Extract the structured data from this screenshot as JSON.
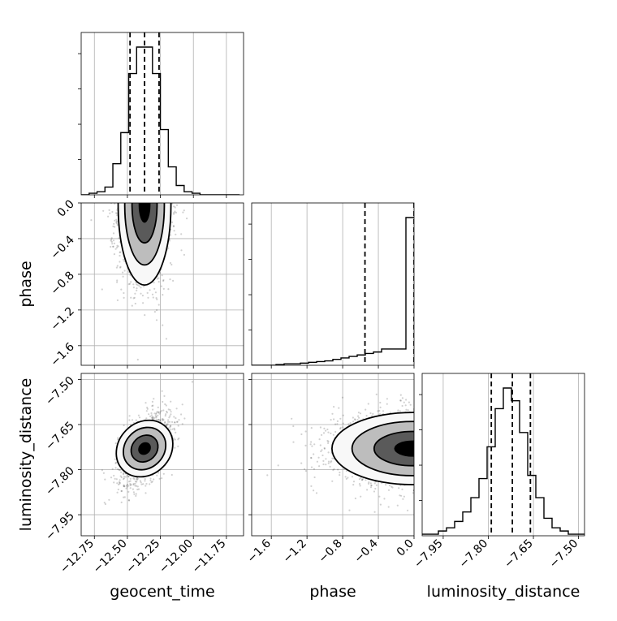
{
  "chart_data": {
    "type": "corner",
    "parameters": [
      "geocent_time",
      "phase",
      "luminosity_distance"
    ],
    "grid": true,
    "axes": {
      "geocent_time": {
        "label": "geocent_time",
        "range": [
          -12.85,
          -11.62
        ],
        "ticks": [
          -12.75,
          -12.5,
          -12.25,
          -12.0,
          -11.75
        ],
        "tick_labels": [
          "−12.75",
          "−12.50",
          "−12.25",
          "−12.00",
          "−11.75"
        ]
      },
      "phase": {
        "label": "phase",
        "range": [
          -1.82,
          0.0
        ],
        "ticks": [
          -1.6,
          -1.2,
          -0.8,
          -0.4,
          0.0
        ],
        "tick_labels": [
          "−1.6",
          "−1.2",
          "−0.8",
          "−0.4",
          "0.0"
        ]
      },
      "luminosity_distance": {
        "label": "luminosity_distance",
        "range": [
          -8.02,
          -7.48
        ],
        "ticks": [
          -7.95,
          -7.8,
          -7.65,
          -7.5
        ],
        "tick_labels": [
          "−7.95",
          "−7.80",
          "−7.65",
          "−7.50"
        ]
      }
    },
    "marginals": [
      {
        "parameter": "geocent_time",
        "quantiles": [
          -12.48,
          -12.37,
          -12.26
        ],
        "bin_edges": [
          -12.85,
          -12.79,
          -12.73,
          -12.67,
          -12.61,
          -12.55,
          -12.49,
          -12.43,
          -12.37,
          -12.31,
          -12.25,
          -12.19,
          -12.13,
          -12.07,
          -12.01,
          -11.95,
          -11.89,
          -11.83,
          -11.77,
          -11.71,
          -11.65
        ],
        "counts": [
          0,
          1,
          2,
          5,
          20,
          40,
          78,
          95,
          95,
          78,
          42,
          18,
          6,
          2,
          1,
          0,
          0,
          0,
          0,
          0
        ]
      },
      {
        "parameter": "phase",
        "quantiles": [
          -0.55,
          -0.0
        ],
        "bin_edges": [
          -1.82,
          -1.729,
          -1.638,
          -1.547,
          -1.456,
          -1.365,
          -1.274,
          -1.183,
          -1.092,
          -1.001,
          -0.91,
          -0.819,
          -0.728,
          -0.637,
          -0.546,
          -0.455,
          -0.364,
          -0.273,
          -0.182,
          -0.091,
          0.0
        ],
        "counts": [
          0,
          0,
          0,
          0.5,
          1,
          1,
          1.5,
          2,
          2.5,
          3,
          4,
          5,
          6,
          7,
          8,
          9,
          11,
          11,
          11,
          100
        ]
      },
      {
        "parameter": "luminosity_distance",
        "quantiles": [
          -7.79,
          -7.72,
          -7.66
        ],
        "bin_edges": [
          -8.02,
          -7.993,
          -7.966,
          -7.939,
          -7.912,
          -7.885,
          -7.858,
          -7.831,
          -7.804,
          -7.777,
          -7.75,
          -7.723,
          -7.696,
          -7.669,
          -7.642,
          -7.615,
          -7.588,
          -7.561,
          -7.534,
          -7.507,
          -7.48
        ],
        "counts": [
          1,
          1,
          3,
          5,
          9,
          15,
          24,
          36,
          56,
          80,
          93,
          85,
          65,
          38,
          24,
          11,
          5,
          3,
          1,
          1
        ]
      }
    ],
    "joint": [
      {
        "x": "geocent_time",
        "y": "phase",
        "center": [
          -12.37,
          -0.02
        ],
        "spread": [
          0.1,
          0.45
        ],
        "contour_levels": 3
      },
      {
        "x": "geocent_time",
        "y": "luminosity_distance",
        "center": [
          -12.37,
          -7.73
        ],
        "spread": [
          0.1,
          0.06
        ],
        "correlation": 0.5,
        "contour_levels": 3
      },
      {
        "x": "phase",
        "y": "luminosity_distance",
        "center": [
          -0.02,
          -7.73
        ],
        "spread": [
          0.45,
          0.06
        ],
        "contour_levels": 3
      }
    ]
  }
}
